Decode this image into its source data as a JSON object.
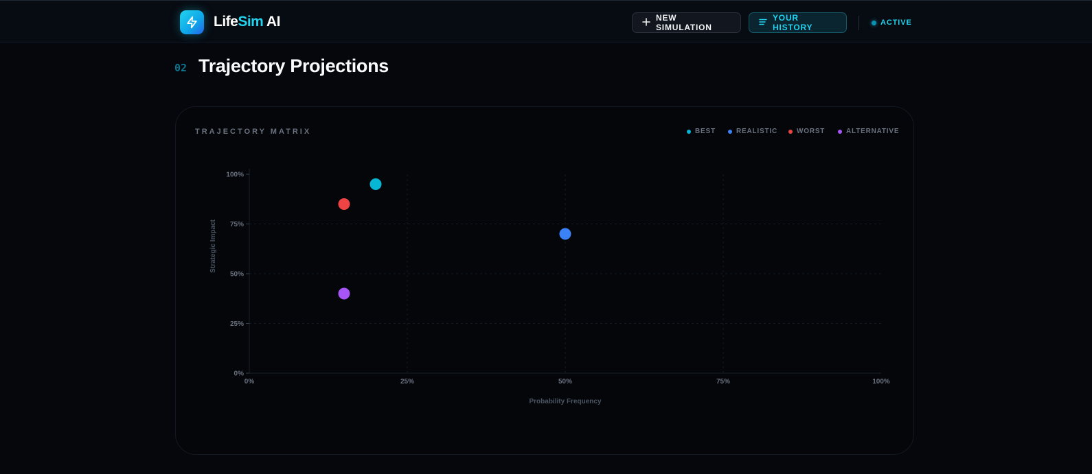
{
  "header": {
    "brand_prefix": "Life",
    "brand_accent": "Sim",
    "brand_suffix": " AI",
    "new_simulation_label": "NEW SIMULATION",
    "history_label": "YOUR HISTORY",
    "status_label": "ACTIVE"
  },
  "section": {
    "number": "02",
    "title": "Trajectory Projections"
  },
  "card": {
    "title": "TRAJECTORY MATRIX"
  },
  "icons": {
    "logo": "lightning-bolt-icon",
    "new_simulation": "plus-icon",
    "history": "list-icon",
    "status": "status-dot-icon"
  },
  "colors": {
    "accent": "#22d3ee",
    "best": "#06b6d4",
    "realistic": "#3b82f6",
    "worst": "#ef4444",
    "alternative": "#a855f7"
  },
  "chart_data": {
    "type": "scatter",
    "xlabel": "Probability Frequency",
    "ylabel": "Strategic Impact",
    "xlim": [
      0,
      100
    ],
    "ylim": [
      0,
      100
    ],
    "x_ticks": [
      "0%",
      "25%",
      "50%",
      "75%",
      "100%"
    ],
    "y_ticks": [
      "0%",
      "25%",
      "50%",
      "75%",
      "100%"
    ],
    "grid": true,
    "legend_position": "top-right",
    "series": [
      {
        "name": "BEST",
        "color": "#06b6d4",
        "points": [
          {
            "x": 20,
            "y": 95
          }
        ]
      },
      {
        "name": "REALISTIC",
        "color": "#3b82f6",
        "points": [
          {
            "x": 50,
            "y": 70
          }
        ]
      },
      {
        "name": "WORST",
        "color": "#ef4444",
        "points": [
          {
            "x": 15,
            "y": 85
          }
        ]
      },
      {
        "name": "ALTERNATIVE",
        "color": "#a855f7",
        "points": [
          {
            "x": 15,
            "y": 40
          }
        ]
      }
    ]
  }
}
